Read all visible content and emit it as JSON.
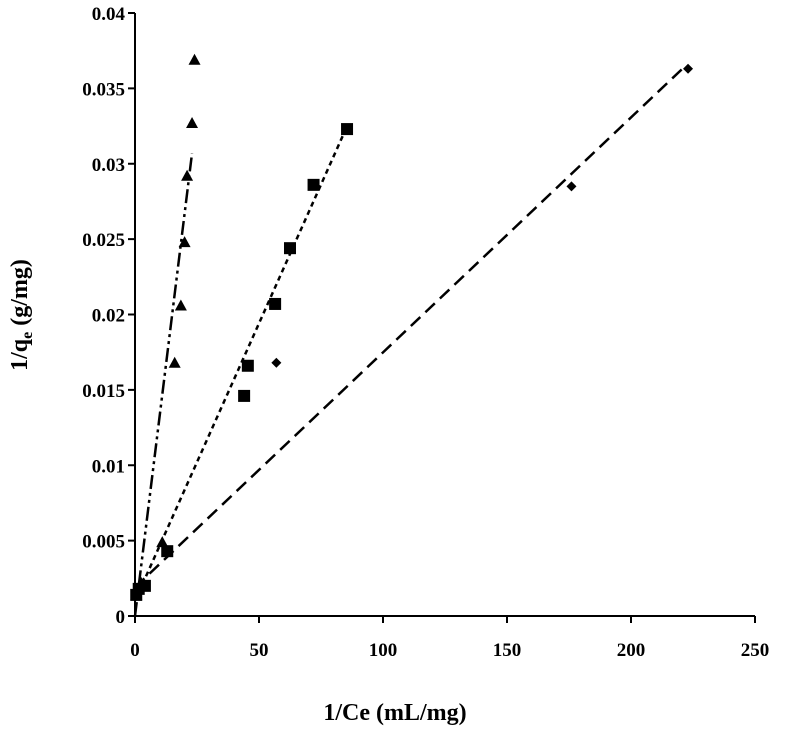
{
  "chart_data": {
    "type": "scatter",
    "xlabel": "1/Ce (mL/mg)",
    "ylabel_main": "1/q",
    "ylabel_sub": "e",
    "ylabel_rest": " (g/mg)",
    "xlim": [
      0,
      250
    ],
    "ylim": [
      0,
      0.04
    ],
    "xticks": [
      "0",
      "50",
      "100",
      "150",
      "200",
      "250"
    ],
    "yticks": [
      "0",
      "0.005",
      "0.01",
      "0.015",
      "0.02",
      "0.025",
      "0.03",
      "0.035",
      "0.04"
    ],
    "grid": false,
    "legend": "none",
    "series": [
      {
        "marker": "triangle",
        "line_style": "dash-dot-dot",
        "points": [
          [
            0.5,
            0.0014
          ],
          [
            1.2,
            0.0018
          ],
          [
            2.5,
            0.0022
          ],
          [
            11.0,
            0.0049
          ],
          [
            16.0,
            0.0168
          ],
          [
            18.5,
            0.0206
          ],
          [
            20.0,
            0.0248
          ],
          [
            21.0,
            0.0292
          ],
          [
            23.0,
            0.0327
          ],
          [
            24.0,
            0.0369
          ]
        ],
        "trendline": [
          [
            0,
            0.0
          ],
          [
            23.0,
            0.0307
          ]
        ]
      },
      {
        "marker": "square",
        "line_style": "short-dash",
        "points": [
          [
            0.5,
            0.0014
          ],
          [
            1.5,
            0.0018
          ],
          [
            4.0,
            0.002
          ],
          [
            13.0,
            0.0043
          ],
          [
            44.0,
            0.0146
          ],
          [
            45.5,
            0.0166
          ],
          [
            56.5,
            0.0207
          ],
          [
            62.5,
            0.0244
          ],
          [
            72.0,
            0.0286
          ],
          [
            85.5,
            0.0323
          ]
        ],
        "trendline": [
          [
            0,
            0.001
          ],
          [
            85.0,
            0.0323
          ]
        ]
      },
      {
        "marker": "diamond",
        "line_style": "long-dash",
        "points": [
          [
            0.5,
            0.0015
          ],
          [
            2.0,
            0.0018
          ],
          [
            57.0,
            0.0168
          ],
          [
            176.0,
            0.0285
          ],
          [
            223.0,
            0.0363
          ]
        ],
        "trendline": [
          [
            0,
            0.0019
          ],
          [
            222.0,
            0.0365
          ]
        ]
      }
    ]
  }
}
